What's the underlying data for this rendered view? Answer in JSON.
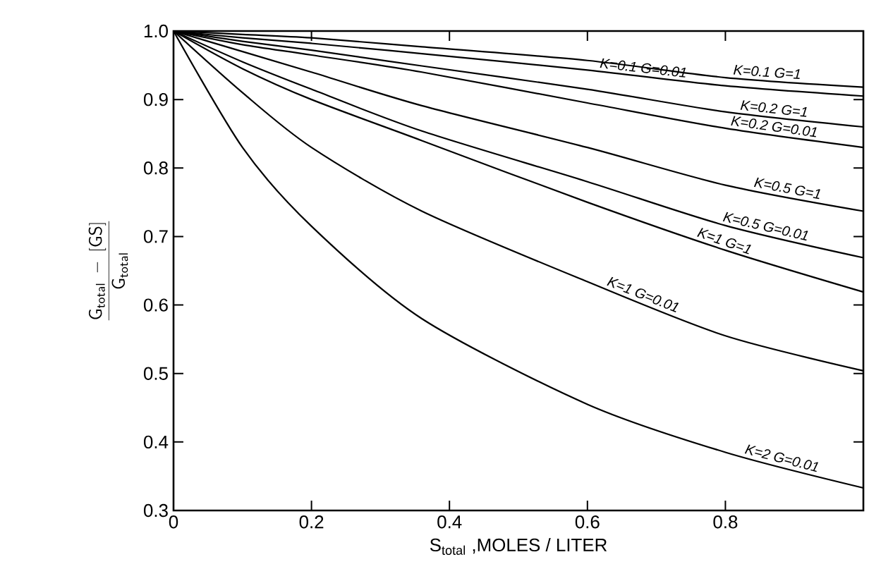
{
  "chart_data": {
    "type": "line",
    "xlabel": "S$_{total}$ ,MOLES / LITER",
    "ylabel": "\\frac{\\mathsf{G_{total}\\;-\\;[GS]}}{\\mathsf{G_{total}}}",
    "xlim": [
      0,
      1.0
    ],
    "ylim": [
      0.3,
      1.0
    ],
    "xticks": [
      0,
      0.2,
      0.4,
      0.6,
      0.8
    ],
    "yticks": [
      0.3,
      0.4,
      0.5,
      0.6,
      0.7,
      0.8,
      0.9,
      {
        "value": 1.0,
        "label": "1.0"
      }
    ],
    "grid": false,
    "legend": false,
    "marker": "none",
    "line_style": "solid",
    "series": [
      {
        "name": "K=0.1  G=1",
        "color": "#000000",
        "x": [
          0,
          0.1,
          0.2,
          0.36,
          0.6,
          0.8,
          1.0
        ],
        "values": [
          1.0,
          0.995,
          0.99,
          0.977,
          0.957,
          0.932,
          0.918
        ]
      },
      {
        "name": "K=0.1  G=0.01",
        "color": "#000000",
        "x": [
          0,
          0.1,
          0.2,
          0.36,
          0.6,
          0.8,
          1.0
        ],
        "values": [
          1.0,
          0.99,
          0.982,
          0.967,
          0.943,
          0.92,
          0.905
        ]
      },
      {
        "name": "K=0.2  G=1",
        "color": "#000000",
        "x": [
          0,
          0.1,
          0.2,
          0.36,
          0.6,
          0.8,
          1.0
        ],
        "values": [
          1.0,
          0.985,
          0.972,
          0.949,
          0.915,
          0.882,
          0.86
        ]
      },
      {
        "name": "K=0.2  G=0.01",
        "color": "#000000",
        "x": [
          0,
          0.1,
          0.2,
          0.36,
          0.6,
          0.8,
          1.0
        ],
        "values": [
          1.0,
          0.98,
          0.965,
          0.94,
          0.895,
          0.858,
          0.83
        ]
      },
      {
        "name": "K=0.5  G=1",
        "color": "#000000",
        "x": [
          0,
          0.1,
          0.2,
          0.36,
          0.6,
          0.8,
          1.0
        ],
        "values": [
          1.0,
          0.97,
          0.94,
          0.891,
          0.83,
          0.775,
          0.737
        ]
      },
      {
        "name": "K=0.5  G=0.01",
        "color": "#000000",
        "x": [
          0,
          0.1,
          0.2,
          0.36,
          0.6,
          0.8,
          1.0
        ],
        "values": [
          1.0,
          0.955,
          0.915,
          0.854,
          0.78,
          0.716,
          0.669
        ]
      },
      {
        "name": "K=1  G=1",
        "color": "#000000",
        "x": [
          0,
          0.1,
          0.2,
          0.36,
          0.6,
          0.8,
          1.0
        ],
        "values": [
          1.0,
          0.945,
          0.9,
          0.84,
          0.75,
          0.68,
          0.619
        ]
      },
      {
        "name": "K=1     G=0.01",
        "color": "#000000",
        "x": [
          0,
          0.1,
          0.2,
          0.36,
          0.6,
          0.8,
          1.0
        ],
        "values": [
          1.0,
          0.91,
          0.83,
          0.737,
          0.634,
          0.555,
          0.504
        ]
      },
      {
        "name": "K=2  G=0.01",
        "color": "#000000",
        "x": [
          0,
          0.1,
          0.2,
          0.36,
          0.6,
          0.8,
          1.0
        ],
        "values": [
          1.0,
          0.83,
          0.715,
          0.58,
          0.455,
          0.385,
          0.333
        ]
      }
    ]
  }
}
